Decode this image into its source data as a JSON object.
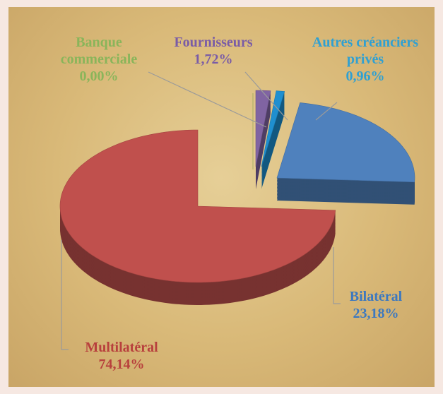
{
  "chart_data": {
    "type": "pie3d",
    "categories": [
      "Banque commerciale",
      "Fournisseurs",
      "Autres créanciers privés",
      "Bilatéral",
      "Multilatéral"
    ],
    "values": [
      0.0,
      1.72,
      0.96,
      23.18,
      74.14
    ],
    "value_labels": [
      "0,00%",
      "1,72%",
      "0,96%",
      "23,18%",
      "74,14%"
    ],
    "colors": [
      "#9bbb59",
      "#8064a2",
      "#1f8fd0",
      "#4f81bd",
      "#c0504d"
    ]
  }
}
